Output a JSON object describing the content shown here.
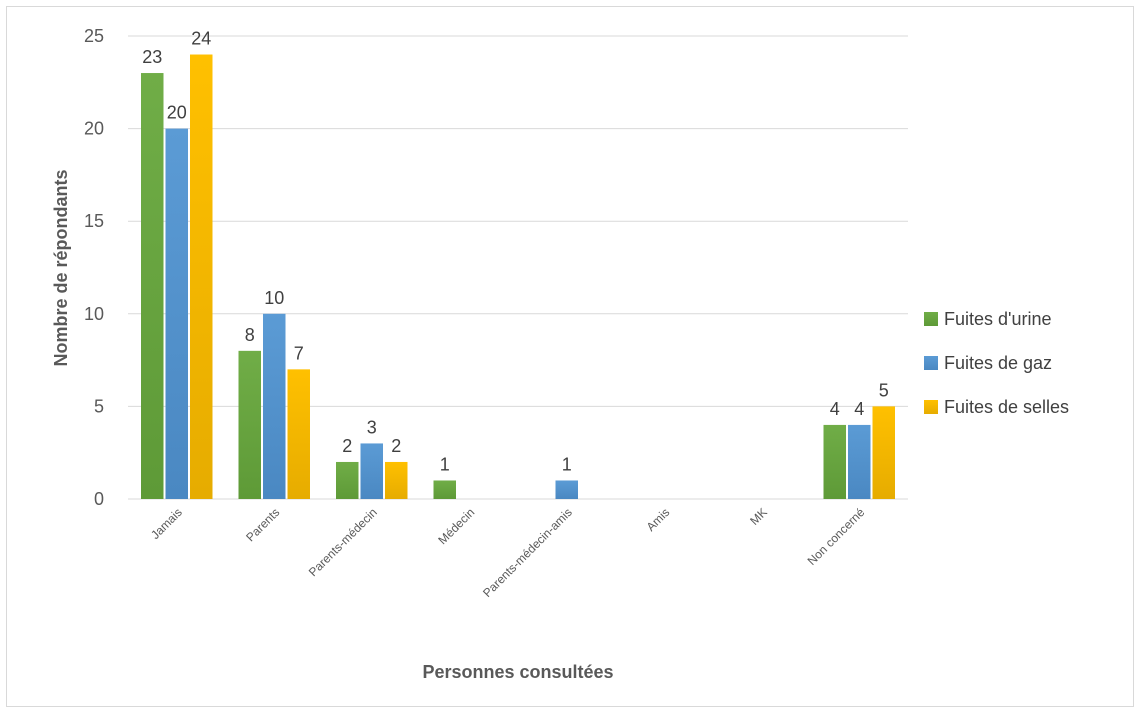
{
  "chart_data": {
    "type": "bar",
    "categories": [
      "Jamais",
      "Parents",
      "Parents-médecin",
      "Médecin",
      "Parents-médecin-amis",
      "Amis",
      "MK",
      "Non concerné"
    ],
    "series": [
      {
        "name": "Fuites d'urine",
        "values": [
          23,
          8,
          2,
          1,
          0,
          0,
          0,
          4
        ],
        "color": "#70ad47"
      },
      {
        "name": "Fuites de gaz",
        "values": [
          20,
          10,
          3,
          0,
          1,
          0,
          0,
          4
        ],
        "color": "#5b9bd5"
      },
      {
        "name": "Fuites de selles",
        "values": [
          24,
          7,
          2,
          0,
          0,
          0,
          0,
          5
        ],
        "color": "#ffc000"
      }
    ],
    "labels": [
      [
        "23",
        "8",
        "2",
        "1",
        "",
        "",
        "",
        "4"
      ],
      [
        "20",
        "10",
        "3",
        "",
        "1",
        "",
        "",
        "4"
      ],
      [
        "24",
        "7",
        "2",
        "",
        "",
        "",
        "",
        "5"
      ]
    ],
    "xlabel": "Personnes consultées",
    "ylabel": "Nombre de répondants",
    "ylim": [
      0,
      25
    ],
    "yticks": [
      0,
      5,
      10,
      15,
      20,
      25
    ],
    "ytick_labels": [
      "0",
      "5",
      "10",
      "15",
      "20",
      "25"
    ],
    "grid": true,
    "legend_position": "right"
  }
}
